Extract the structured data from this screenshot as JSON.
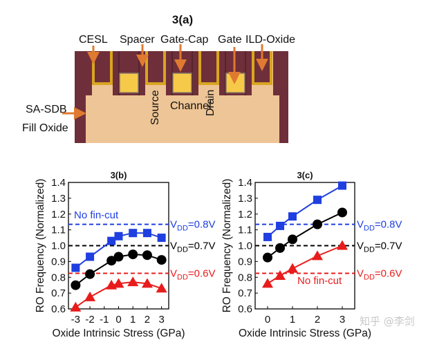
{
  "diagram": {
    "title": "3(a)",
    "labels": {
      "cesl": "CESL",
      "spacer": "Spacer",
      "gate_cap": "Gate-Cap",
      "gate": "Gate",
      "ild_oxide": "ILD-Oxide",
      "sa_sdb": "SA-SDB",
      "fill_oxide": "Fill Oxide",
      "source": "Source",
      "channel": "Channel",
      "drain": "Drain"
    },
    "colors": {
      "pillar": "#6e2f3a",
      "liner": "#d9a520",
      "gate": "#f7c948",
      "fill": "#eec596",
      "arrow": "#e07a30"
    }
  },
  "watermark": "知乎 @李剑",
  "chart_data": [
    {
      "type": "line",
      "title": "3(b)",
      "xlabel": "Oxide Intrinsic Stress (GPa)",
      "ylabel": "RO Frequency (Normalized)",
      "xlim": [
        -3.5,
        3.5
      ],
      "ylim": [
        0.6,
        1.4
      ],
      "xticks": [
        "-3",
        "-2",
        "-1",
        "0",
        "1",
        "2",
        "3"
      ],
      "xtick_values": [
        -3,
        -2,
        -1,
        0,
        1,
        2,
        3
      ],
      "yticks": [
        "0.6",
        "0.7",
        "0.8",
        "0.9",
        "1.0",
        "1.1",
        "1.2",
        "1.3",
        "1.4"
      ],
      "grid": false,
      "series": [
        {
          "color": "#1f3fe0",
          "marker": "square",
          "x": [
            -3,
            -2,
            -0.5,
            0,
            1,
            2,
            3
          ],
          "y": [
            0.86,
            0.93,
            1.03,
            1.06,
            1.08,
            1.08,
            1.05
          ]
        },
        {
          "color": "#000000",
          "marker": "circle",
          "x": [
            -3,
            -2,
            -0.5,
            0,
            1,
            2,
            3
          ],
          "y": [
            0.75,
            0.82,
            0.905,
            0.93,
            0.945,
            0.94,
            0.91
          ]
        },
        {
          "color": "#e81c1c",
          "marker": "triangle",
          "x": [
            -3,
            -2,
            -0.5,
            0,
            1,
            2,
            3
          ],
          "y": [
            0.61,
            0.675,
            0.75,
            0.76,
            0.77,
            0.76,
            0.73
          ]
        }
      ],
      "reference_lines": [
        {
          "y": 1.135,
          "color": "#1f3fe0",
          "v": "V",
          "sub": "DD",
          "rest": "=0.8V"
        },
        {
          "y": 1.0,
          "color": "#000000",
          "v": "V",
          "sub": "DD",
          "rest": "=0.7V"
        },
        {
          "y": 0.825,
          "color": "#e81c1c",
          "v": "V",
          "sub": "DD",
          "rest": "=0.6V"
        }
      ],
      "annotation": {
        "text": "No fin-cut",
        "color": "#1f3fe0"
      }
    },
    {
      "type": "line",
      "title": "3(c)",
      "xlabel": "Oxide Intrinsic Stress (GPa)",
      "ylabel": "RO Frequency (Normalized)",
      "xlim": [
        -0.5,
        3.5
      ],
      "ylim": [
        0.6,
        1.4
      ],
      "xticks": [
        "0",
        "1",
        "2",
        "3"
      ],
      "xtick_values": [
        0,
        1,
        2,
        3
      ],
      "yticks": [
        "0.6",
        "0.7",
        "0.8",
        "0.9",
        "1.0",
        "1.1",
        "1.2",
        "1.3",
        "1.4"
      ],
      "grid": false,
      "series": [
        {
          "color": "#1f3fe0",
          "marker": "square",
          "x": [
            0,
            0.5,
            1,
            2,
            3
          ],
          "y": [
            1.055,
            1.125,
            1.185,
            1.29,
            1.38
          ]
        },
        {
          "color": "#000000",
          "marker": "circle",
          "x": [
            0,
            0.5,
            1,
            2,
            3
          ],
          "y": [
            0.925,
            0.985,
            1.04,
            1.135,
            1.21
          ]
        },
        {
          "color": "#e81c1c",
          "marker": "triangle",
          "x": [
            0,
            0.5,
            1,
            2,
            3
          ],
          "y": [
            0.76,
            0.81,
            0.855,
            0.935,
            1.0
          ]
        }
      ],
      "reference_lines": [
        {
          "y": 1.135,
          "color": "#1f3fe0",
          "v": "V",
          "sub": "DD",
          "rest": "=0.8V"
        },
        {
          "y": 1.0,
          "color": "#000000",
          "v": "V",
          "sub": "DD",
          "rest": "=0.7V"
        },
        {
          "y": 0.825,
          "color": "#e81c1c",
          "v": "V",
          "sub": "DD",
          "rest": "=0.6V"
        }
      ],
      "annotation": {
        "text": "No fin-cut",
        "color": "#e81c1c"
      }
    }
  ]
}
